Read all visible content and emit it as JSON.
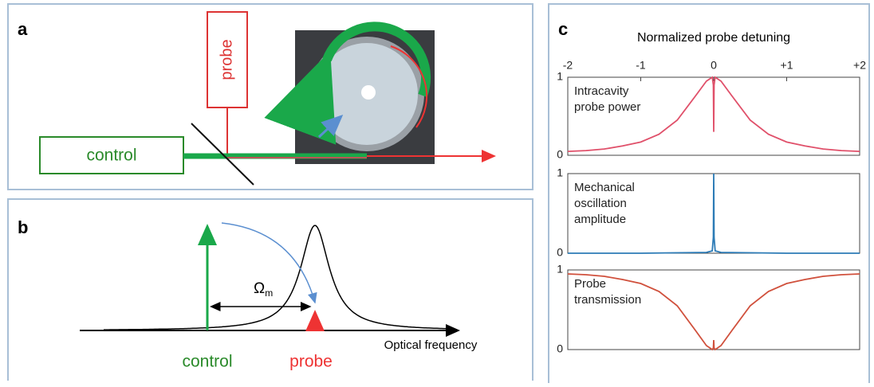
{
  "panels": {
    "a": {
      "label": "a",
      "probe": "probe",
      "control": "control"
    },
    "b": {
      "label": "b",
      "omega": "Ω",
      "omega_sub": "m",
      "control": "control",
      "probe": "probe",
      "axis": "Optical frequency"
    },
    "c": {
      "label": "c"
    }
  },
  "chart_data": [
    {
      "type": "line",
      "xlabel": "Normalized probe detuning",
      "annotation": [
        "Intracavity",
        "probe power"
      ],
      "xlim": [
        -2,
        2
      ],
      "xticks": [
        -2,
        -1,
        0,
        {
          "value": 1,
          "label": "+1"
        },
        {
          "value": 2,
          "label": "+2"
        }
      ],
      "ylim": [
        0,
        1
      ],
      "yticks": [
        0,
        1
      ],
      "color": "#e0506a",
      "x": [
        -2,
        -1.75,
        -1.5,
        -1.25,
        -1,
        -0.75,
        -0.5,
        -0.25,
        -0.1,
        -0.02,
        -0.005,
        0,
        0.005,
        0.02,
        0.1,
        0.25,
        0.5,
        0.75,
        1,
        1.25,
        1.5,
        1.75,
        2
      ],
      "values": [
        0.05,
        0.06,
        0.08,
        0.12,
        0.17,
        0.27,
        0.45,
        0.76,
        0.95,
        1.0,
        0.9,
        0.3,
        0.9,
        1.0,
        0.95,
        0.76,
        0.45,
        0.27,
        0.17,
        0.12,
        0.08,
        0.06,
        0.05
      ]
    },
    {
      "type": "line",
      "annotation": [
        "Mechanical",
        "oscillation",
        "amplitude"
      ],
      "xlim": [
        -2,
        2
      ],
      "ylim": [
        0,
        1
      ],
      "yticks": [
        0,
        1
      ],
      "color": "#2c7bb6",
      "x": [
        -2,
        -1,
        -0.1,
        -0.02,
        -0.005,
        0,
        0.005,
        0.02,
        0.1,
        1,
        2
      ],
      "values": [
        0,
        0,
        0.01,
        0.03,
        0.2,
        1,
        0.2,
        0.03,
        0.01,
        0,
        0
      ]
    },
    {
      "type": "line",
      "annotation": [
        "Probe",
        "transmission"
      ],
      "xlim": [
        -2,
        2
      ],
      "ylim": [
        0,
        1
      ],
      "yticks": [
        0,
        1
      ],
      "color": "#d0503c",
      "x": [
        -2,
        -1.75,
        -1.5,
        -1.25,
        -1,
        -0.75,
        -0.5,
        -0.25,
        -0.1,
        -0.02,
        -0.005,
        0,
        0.005,
        0.02,
        0.1,
        0.25,
        0.5,
        0.75,
        1,
        1.25,
        1.5,
        1.75,
        2
      ],
      "values": [
        0.95,
        0.94,
        0.92,
        0.88,
        0.83,
        0.73,
        0.55,
        0.24,
        0.05,
        0.0,
        0.02,
        0.12,
        0.02,
        0.0,
        0.05,
        0.24,
        0.55,
        0.73,
        0.83,
        0.88,
        0.92,
        0.94,
        0.95
      ]
    }
  ]
}
